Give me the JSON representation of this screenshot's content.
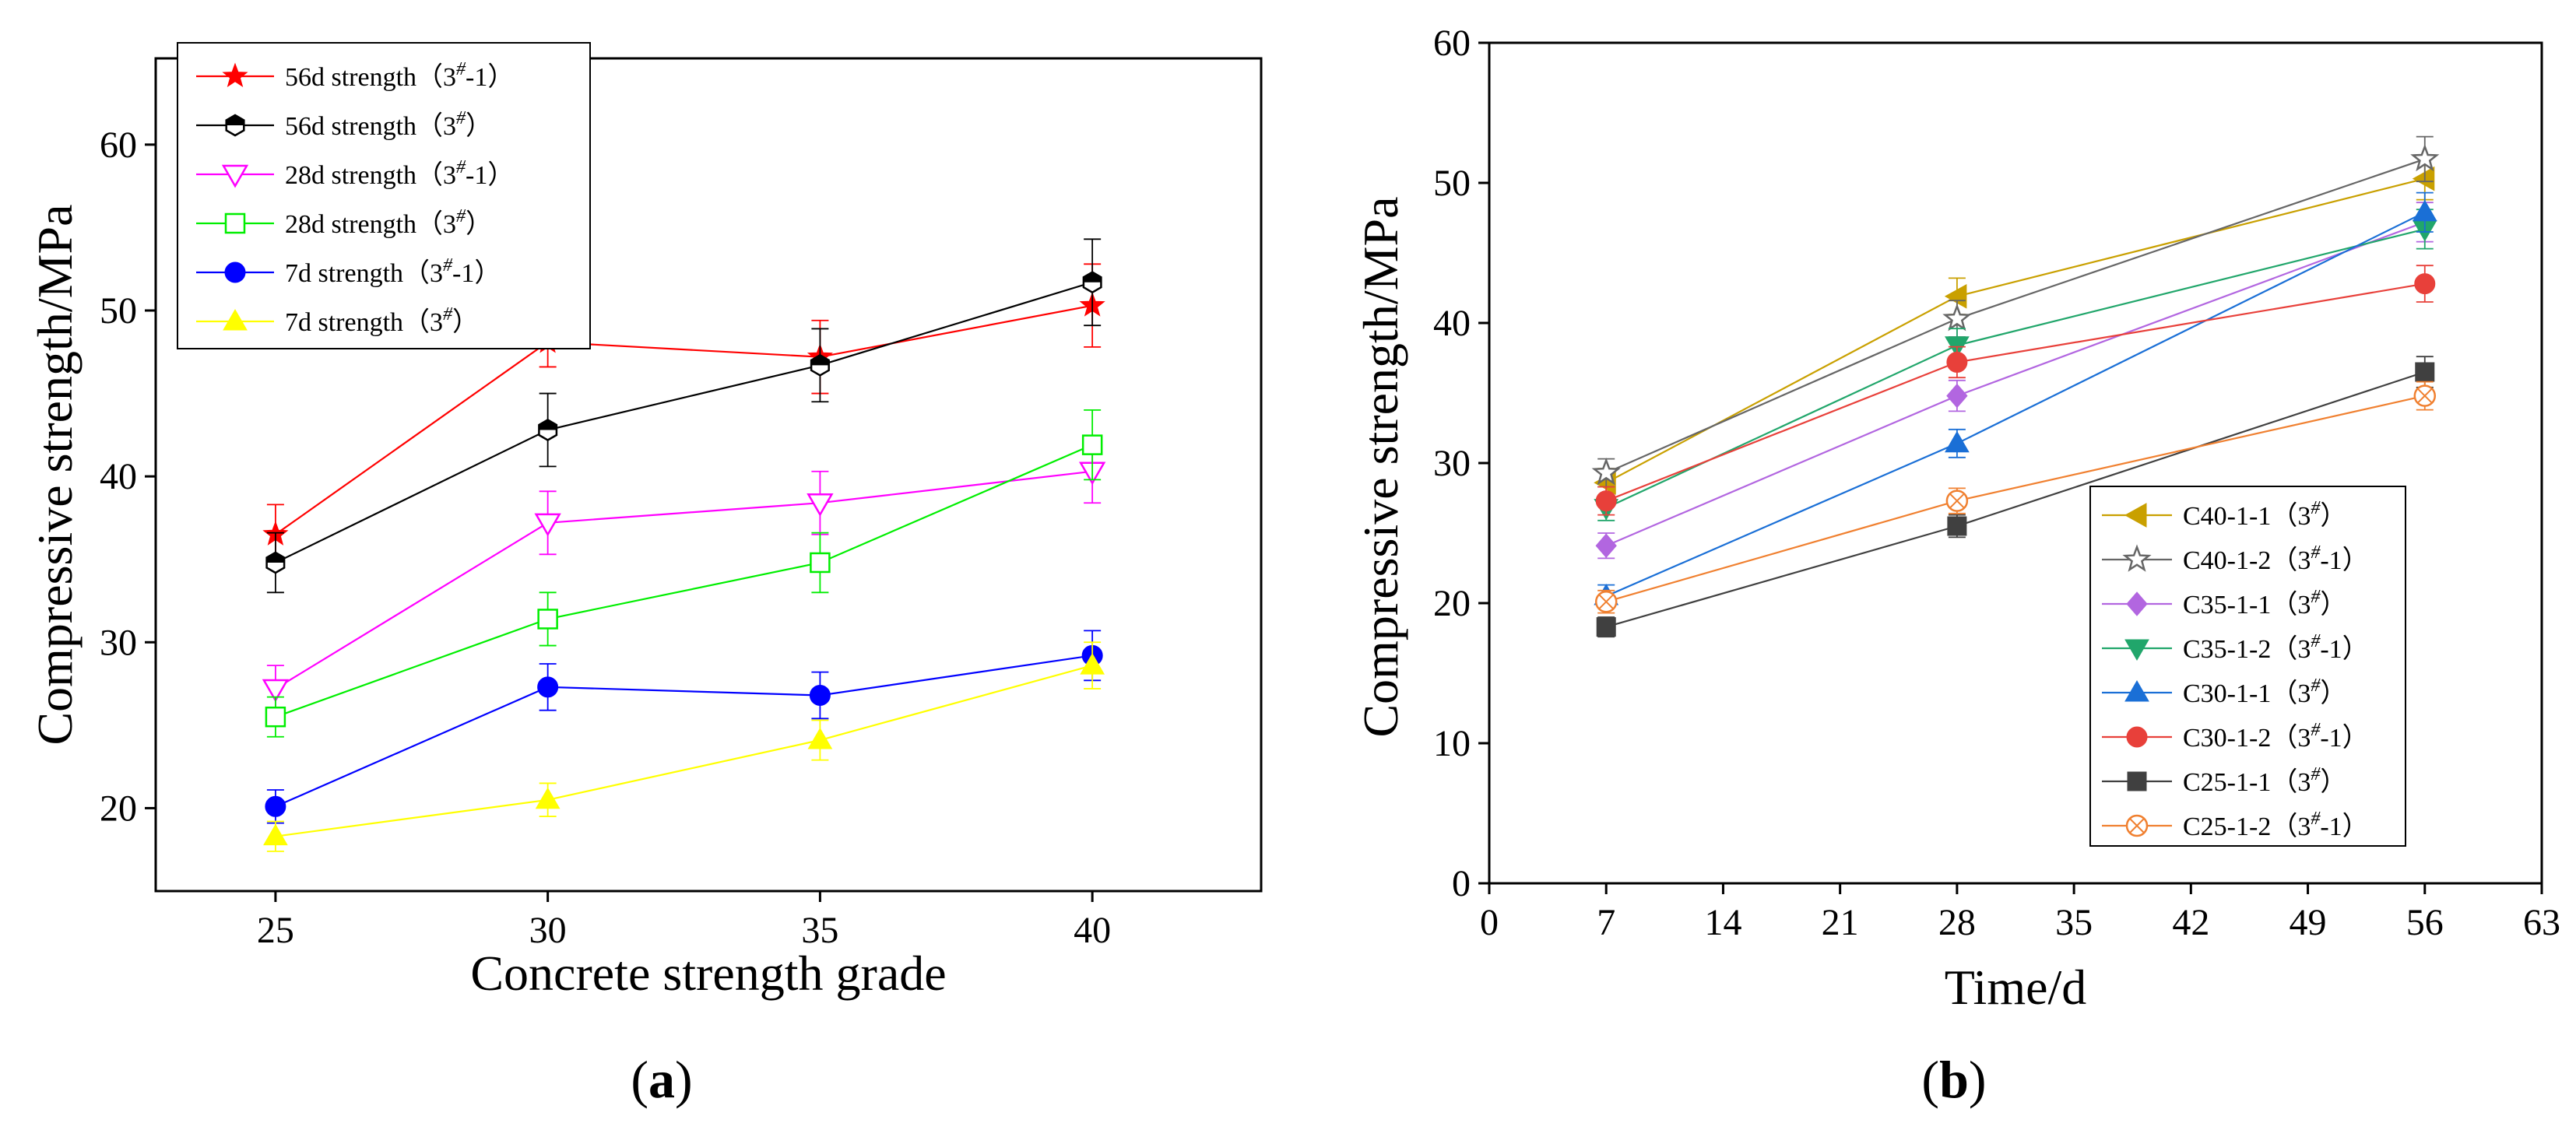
{
  "chart_data": [
    {
      "id": "a",
      "type": "line",
      "panel_label": "a",
      "xlabel": "Concrete strength grade",
      "ylabel": "Compressive strength/MPa",
      "x": [
        25,
        30,
        35,
        40
      ],
      "xticks": [
        "25",
        "30",
        "35",
        "40"
      ],
      "yticks": [
        "20",
        "30",
        "40",
        "50",
        "60"
      ],
      "xlim": [
        22.8,
        43.1
      ],
      "ylim": [
        15.0,
        65.2
      ],
      "legend_position": "top-left",
      "series": [
        {
          "name": "56d strength",
          "mark": "3",
          "sup": "#",
          "suffix": "-1",
          "color": "#ff0000",
          "marker": "star",
          "values": [
            36.5,
            48.1,
            47.2,
            50.3
          ],
          "err": [
            1.8,
            1.5,
            2.2,
            2.5
          ]
        },
        {
          "name": "56d strength",
          "mark": "3",
          "sup": "#",
          "suffix": "",
          "color": "#000000",
          "marker": "hexhalf",
          "values": [
            34.8,
            42.8,
            46.7,
            51.7
          ],
          "err": [
            1.8,
            2.2,
            2.2,
            2.6
          ]
        },
        {
          "name": "28d strength",
          "mark": "3",
          "sup": "#",
          "suffix": "-1",
          "color": "#ff00ff",
          "marker": "tri-down-open",
          "values": [
            27.2,
            37.2,
            38.4,
            40.3
          ],
          "err": [
            1.4,
            1.9,
            1.9,
            1.9
          ]
        },
        {
          "name": "28d strength",
          "mark": "3",
          "sup": "#",
          "suffix": "",
          "color": "#00ee00",
          "marker": "square-open",
          "values": [
            25.5,
            31.4,
            34.8,
            41.9
          ],
          "err": [
            1.2,
            1.6,
            1.8,
            2.1
          ]
        },
        {
          "name": "7d strength",
          "mark": "3",
          "sup": "#",
          "suffix": "-1",
          "color": "#0000ff",
          "marker": "circle",
          "values": [
            20.1,
            27.3,
            26.8,
            29.2
          ],
          "err": [
            1.0,
            1.4,
            1.4,
            1.5
          ]
        },
        {
          "name": "7d strength",
          "mark": "3",
          "sup": "#",
          "suffix": "",
          "color": "#ffff00",
          "marker": "tri-up",
          "values": [
            18.3,
            20.5,
            24.1,
            28.6
          ],
          "err": [
            0.9,
            1.0,
            1.2,
            1.4
          ]
        }
      ]
    },
    {
      "id": "b",
      "type": "line",
      "panel_label": "b",
      "xlabel": "Time/d",
      "ylabel": "Compressive strength/MPa",
      "x": [
        7,
        28,
        56
      ],
      "xticks": [
        "0",
        "7",
        "14",
        "21",
        "28",
        "35",
        "42",
        "49",
        "56",
        "63"
      ],
      "yticks": [
        "0",
        "10",
        "20",
        "30",
        "40",
        "50",
        "60"
      ],
      "xlim": [
        0,
        63
      ],
      "ylim": [
        0,
        60
      ],
      "legend_position": "bottom-right",
      "series": [
        {
          "name": "C40-1-1",
          "mark": "3",
          "sup": "#",
          "suffix": "",
          "color": "#c9a000",
          "marker": "tri-left",
          "values": [
            28.6,
            41.9,
            50.3
          ],
          "err": [
            1.0,
            1.3,
            1.5
          ]
        },
        {
          "name": "C40-1-2",
          "mark": "3",
          "sup": "#",
          "suffix": "-1",
          "color": "#666666",
          "marker": "star-open",
          "values": [
            29.3,
            40.3,
            51.7
          ],
          "err": [
            1.0,
            1.3,
            1.6
          ]
        },
        {
          "name": "C35-1-1",
          "mark": "3",
          "sup": "#",
          "suffix": "",
          "color": "#b266e0",
          "marker": "diamond",
          "values": [
            24.1,
            34.8,
            47.2
          ],
          "err": [
            0.9,
            1.1,
            1.4
          ]
        },
        {
          "name": "C35-1-2",
          "mark": "3",
          "sup": "#",
          "suffix": "-1",
          "color": "#21a66b",
          "marker": "tri-down",
          "values": [
            26.8,
            38.4,
            46.7
          ],
          "err": [
            0.9,
            1.2,
            1.4
          ]
        },
        {
          "name": "C30-1-1",
          "mark": "3",
          "sup": "#",
          "suffix": "",
          "color": "#1a6fd6",
          "marker": "tri-up",
          "values": [
            20.5,
            31.4,
            47.9
          ],
          "err": [
            0.8,
            1.0,
            1.4
          ]
        },
        {
          "name": "C30-1-2",
          "mark": "3",
          "sup": "#",
          "suffix": "-1",
          "color": "#e8403a",
          "marker": "circle",
          "values": [
            27.3,
            37.2,
            42.8
          ],
          "err": [
            1.0,
            1.1,
            1.3
          ]
        },
        {
          "name": "C25-1-1",
          "mark": "3",
          "sup": "#",
          "suffix": "",
          "color": "#404040",
          "marker": "square",
          "values": [
            18.3,
            25.5,
            36.5
          ],
          "err": [
            0.7,
            0.8,
            1.1
          ]
        },
        {
          "name": "C25-1-2",
          "mark": "3",
          "sup": "#",
          "suffix": "-1",
          "color": "#f08030",
          "marker": "circle-x",
          "values": [
            20.1,
            27.3,
            34.8
          ],
          "err": [
            0.8,
            0.9,
            1.0
          ]
        }
      ]
    }
  ]
}
